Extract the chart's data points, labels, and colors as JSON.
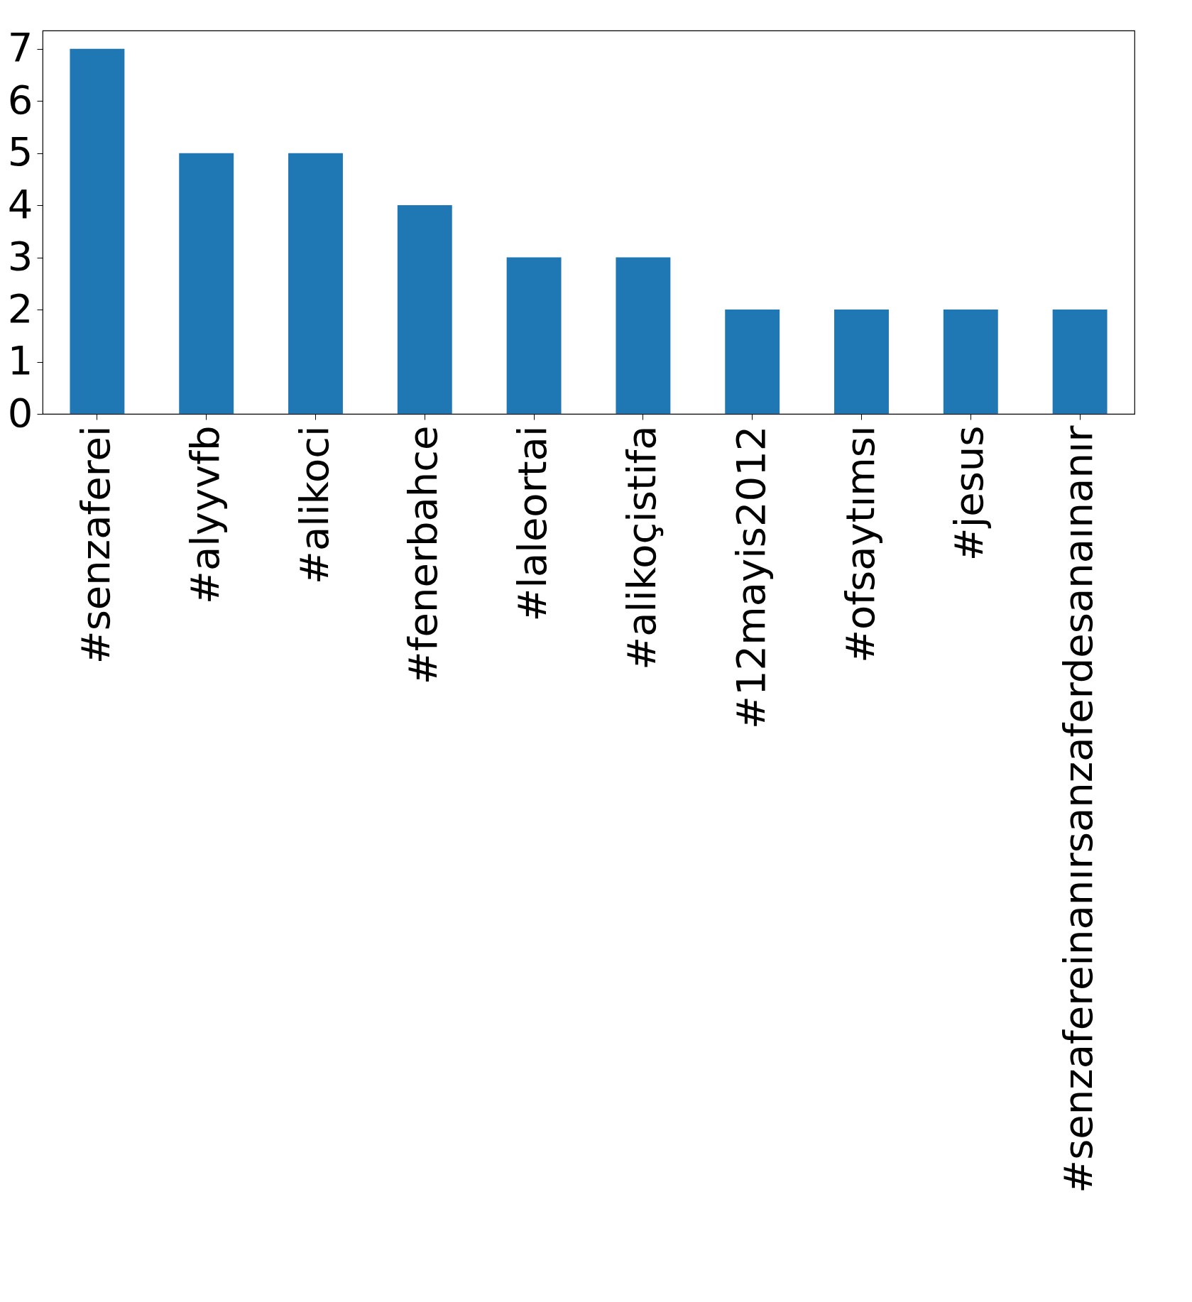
{
  "chart_data": {
    "type": "bar",
    "categories": [
      "#senzaferei",
      "#alyyvfb",
      "#alikoci",
      "#fenerbahce",
      "#laleortai",
      "#alikoçistifa",
      "#12mayis2012",
      "#ofsaytımsı",
      "#jesus",
      "#senzafereinanırsanzaferdesanaınanır"
    ],
    "values": [
      7,
      5,
      5,
      4,
      3,
      3,
      2,
      2,
      2,
      2
    ],
    "color": "#1f77b4",
    "ylim": [
      0,
      7.35
    ],
    "yticks": [
      0,
      1,
      2,
      3,
      4,
      5,
      6,
      7
    ],
    "grid": false
  }
}
